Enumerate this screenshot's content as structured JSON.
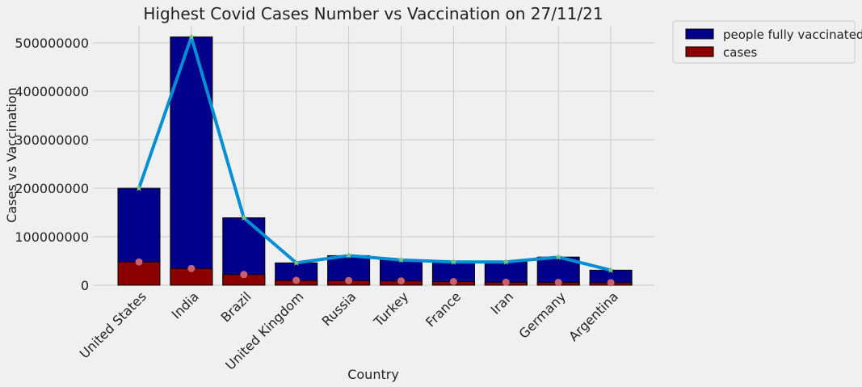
{
  "chart_data": {
    "type": "bar",
    "title": "Highest Covid Cases Number vs Vaccination on 27/11/21",
    "xlabel": "Country",
    "ylabel": "Cases vs Vaccination",
    "categories": [
      "United States",
      "India",
      "Brazil",
      "United Kingdom",
      "Russia",
      "Turkey",
      "France",
      "Iran",
      "Germany",
      "Argentina"
    ],
    "ylim": [
      0,
      535000000
    ],
    "yticks": [
      0,
      100000000,
      200000000,
      300000000,
      400000000,
      500000000
    ],
    "ytick_labels": [
      "0",
      "100000000",
      "200000000",
      "300000000",
      "400000000",
      "500000000"
    ],
    "grid": true,
    "legend_position": "outside top-right",
    "series": [
      {
        "name": "people fully vaccinated",
        "kind": "bar",
        "color": "#00008b",
        "values": [
          200000000,
          512000000,
          139000000,
          46000000,
          61000000,
          52000000,
          48000000,
          48000000,
          58000000,
          31000000
        ]
      },
      {
        "name": "cases",
        "kind": "bar",
        "color": "#8b0000",
        "values": [
          48000000,
          34500000,
          22000000,
          10000000,
          9500000,
          8800000,
          7500000,
          6100000,
          5700000,
          5300000
        ]
      }
    ],
    "overlays": [
      {
        "kind": "line",
        "color": "#008fd5",
        "marker": "star",
        "marker_color": "#7fbf7f",
        "values": [
          200000000,
          512000000,
          139000000,
          46000000,
          61000000,
          52000000,
          48000000,
          48000000,
          58000000,
          31000000
        ]
      },
      {
        "kind": "scatter",
        "color": "#c8616b",
        "values": [
          48000000,
          34500000,
          22000000,
          10000000,
          9500000,
          8800000,
          7500000,
          6100000,
          5700000,
          5300000
        ]
      }
    ]
  }
}
